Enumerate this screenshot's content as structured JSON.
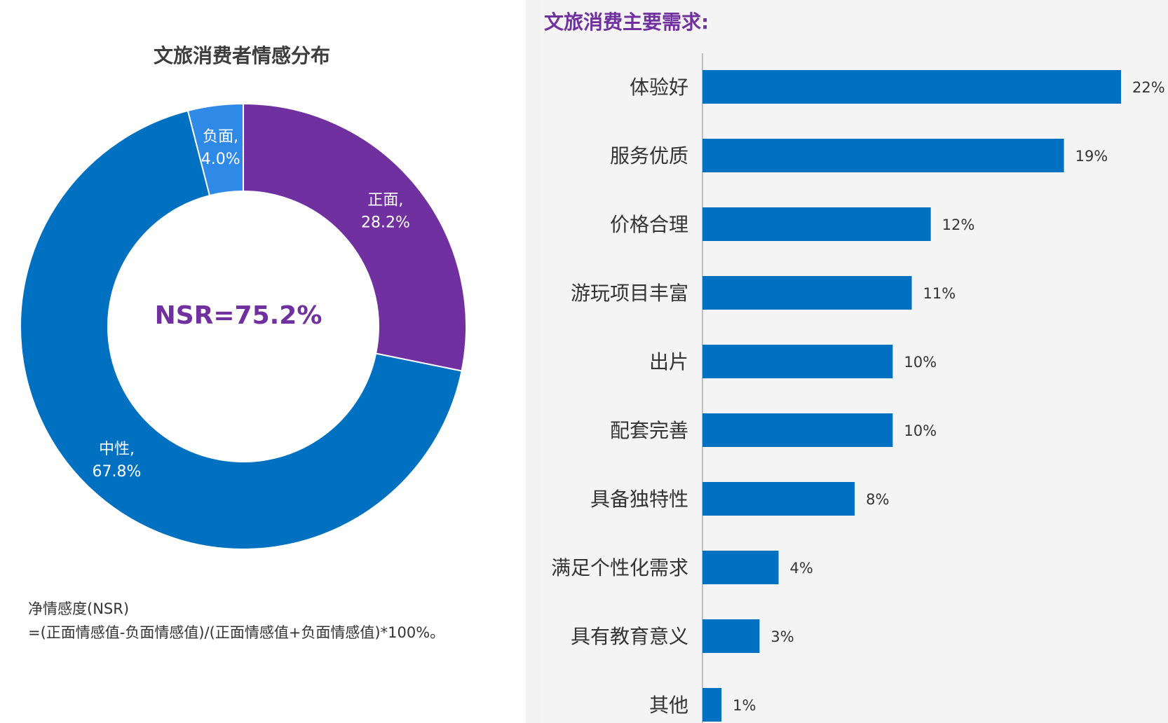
{
  "pie_chart": {
    "title": "文旅消费者情感分布",
    "center_label": "NSR=75.2%",
    "footnote_lines": [
      "净情感度(NSR)",
      "=(正面情感值-负面情感值)/(正面情感值+负面情感值)*100%。"
    ]
  },
  "bar_chart": {
    "title": "文旅消费主要需求:"
  },
  "colors": {
    "positive": "#7030a0",
    "neutral": "#0070c0",
    "negative": "#2e8ae6",
    "bar": "#0070c0"
  },
  "chart_data": [
    {
      "type": "pie",
      "title": "文旅消费者情感分布",
      "slices": [
        {
          "name": "正面",
          "value": 28.2,
          "label": "正面,\n28.2%"
        },
        {
          "name": "中性",
          "value": 67.8,
          "label": "中性,\n67.8%"
        },
        {
          "name": "负面",
          "value": 4.0,
          "label": "负面,\n4.0%"
        }
      ],
      "donut": true,
      "center_text": "NSR=75.2%"
    },
    {
      "type": "bar",
      "orientation": "horizontal",
      "title": "文旅消费主要需求:",
      "categories": [
        "体验好",
        "服务优质",
        "价格合理",
        "游玩项目丰富",
        "出片",
        "配套完善",
        "具备独特性",
        "满足个性化需求",
        "具有教育意义",
        "其他"
      ],
      "values": [
        22,
        19,
        12,
        11,
        10,
        10,
        8,
        4,
        3,
        1
      ],
      "value_labels": [
        "22%",
        "19%",
        "12%",
        "11%",
        "10%",
        "10%",
        "8%",
        "4%",
        "3%",
        "1%"
      ]
    }
  ]
}
